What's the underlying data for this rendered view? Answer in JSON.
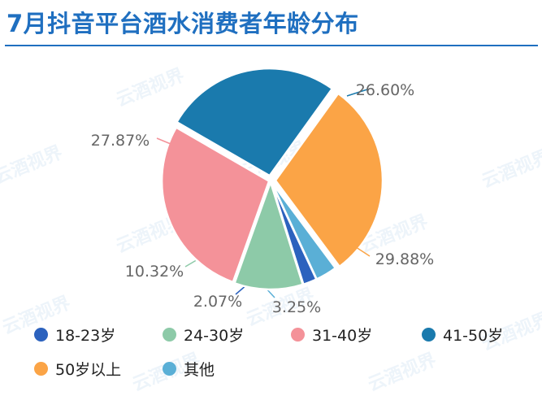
{
  "watermark": "云酒视界",
  "chart_data": {
    "type": "pie",
    "title": "7月抖音平台酒水消费者年龄分布",
    "slices": [
      {
        "label": "41-50岁",
        "value": 26.6,
        "value_label": "26.60%",
        "color": "#1a7aad"
      },
      {
        "label": "50岁以上",
        "value": 29.88,
        "value_label": "29.88%",
        "color": "#fba446"
      },
      {
        "label": "其他",
        "value": 3.25,
        "value_label": "3.25%",
        "color": "#5aafd6"
      },
      {
        "label": "18-23岁",
        "value": 2.07,
        "value_label": "2.07%",
        "color": "#2c62be"
      },
      {
        "label": "24-30岁",
        "value": 10.32,
        "value_label": "10.32%",
        "color": "#8dcaa8"
      },
      {
        "label": "31-40岁",
        "value": 27.87,
        "value_label": "27.87%",
        "color": "#f49299"
      }
    ],
    "legend": [
      {
        "label": "18-23岁",
        "color": "#2c62be"
      },
      {
        "label": "24-30岁",
        "color": "#8dcaa8"
      },
      {
        "label": "31-40岁",
        "color": "#f49299"
      },
      {
        "label": "41-50岁",
        "color": "#1a7aad"
      },
      {
        "label": "50岁以上",
        "color": "#fba446"
      },
      {
        "label": "其他",
        "color": "#5aafd6"
      }
    ],
    "legend_position": "bottom"
  }
}
